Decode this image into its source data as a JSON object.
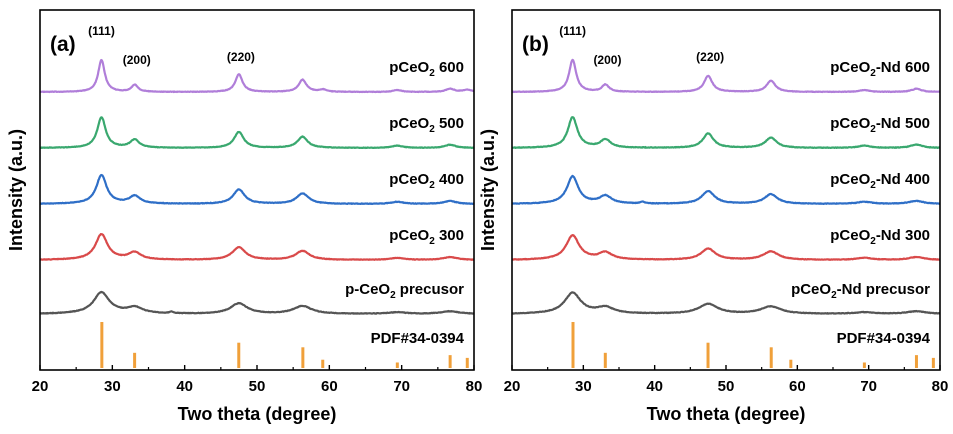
{
  "chart_data": [
    {
      "type": "line",
      "panel_label": "(a)",
      "xlabel": "Two theta (degree)",
      "ylabel": "Intensity (a.u.)",
      "xlim": [
        20,
        80
      ],
      "x_ticks": [
        "20",
        "30",
        "40",
        "50",
        "60",
        "70",
        "80"
      ],
      "peak_labels": [
        {
          "x": 28.5,
          "text": "(111)"
        },
        {
          "x": 33.1,
          "text": "(200)"
        },
        {
          "x": 47.5,
          "text": "(220)"
        }
      ],
      "series": [
        {
          "label_main": "pCeO",
          "label_sub": "2",
          "label_rest": " 600",
          "color": "#b07ed9",
          "smooth": 0.0,
          "noise": 0.25,
          "peaks": [
            [
              28.5,
              1.0,
              0.55
            ],
            [
              33.1,
              0.22,
              0.55
            ],
            [
              47.5,
              0.55,
              0.6
            ],
            [
              56.3,
              0.38,
              0.65
            ],
            [
              59.1,
              0.07,
              0.6
            ],
            [
              69.4,
              0.06,
              0.7
            ],
            [
              76.7,
              0.1,
              0.7
            ],
            [
              79.1,
              0.07,
              0.7
            ]
          ]
        },
        {
          "label_main": "pCeO",
          "label_sub": "2",
          "label_rest": " 500",
          "color": "#3aa86f",
          "smooth": 0.15,
          "noise": 0.25,
          "peaks": [
            [
              28.5,
              0.95,
              0.7
            ],
            [
              33.1,
              0.25,
              0.75
            ],
            [
              47.5,
              0.5,
              0.8
            ],
            [
              56.3,
              0.35,
              0.85
            ],
            [
              69.4,
              0.07,
              0.9
            ],
            [
              76.7,
              0.1,
              0.9
            ]
          ]
        },
        {
          "label_main": "pCeO",
          "label_sub": "2",
          "label_rest": " 400",
          "color": "#2f6fc7",
          "smooth": 0.25,
          "noise": 0.3,
          "peaks": [
            [
              28.5,
              0.95,
              0.85
            ],
            [
              33.1,
              0.25,
              0.9
            ],
            [
              47.5,
              0.48,
              0.95
            ],
            [
              56.3,
              0.35,
              1.0
            ],
            [
              69.4,
              0.07,
              1.0
            ],
            [
              76.7,
              0.1,
              1.0
            ]
          ]
        },
        {
          "label_main": "pCeO",
          "label_sub": "2",
          "label_rest": " 300",
          "color": "#d94a4a",
          "smooth": 0.35,
          "noise": 0.3,
          "peaks": [
            [
              28.5,
              0.9,
              1.0
            ],
            [
              33.1,
              0.25,
              1.0
            ],
            [
              47.5,
              0.45,
              1.1
            ],
            [
              56.3,
              0.32,
              1.15
            ],
            [
              69.4,
              0.07,
              1.2
            ],
            [
              76.7,
              0.1,
              1.2
            ]
          ]
        },
        {
          "label_main": "p-CeO",
          "label_sub": "2",
          "label_rest": " precusor",
          "color": "#555555",
          "smooth": 0.5,
          "noise": 0.35,
          "peaks": [
            [
              28.5,
              0.8,
              1.3
            ],
            [
              33.1,
              0.22,
              1.3
            ],
            [
              38.2,
              0.06,
              0.3
            ],
            [
              47.5,
              0.4,
              1.4
            ],
            [
              56.3,
              0.3,
              1.5
            ],
            [
              69.4,
              0.06,
              1.5
            ],
            [
              76.7,
              0.1,
              1.5
            ]
          ]
        }
      ],
      "reference": {
        "label": "PDF#34-0394",
        "color": "#f0a03a",
        "lines": [
          [
            28.55,
            1.0
          ],
          [
            33.08,
            0.33
          ],
          [
            47.48,
            0.55
          ],
          [
            56.34,
            0.45
          ],
          [
            59.09,
            0.18
          ],
          [
            69.4,
            0.12
          ],
          [
            76.7,
            0.28
          ],
          [
            79.07,
            0.22
          ]
        ]
      }
    },
    {
      "type": "line",
      "panel_label": "(b)",
      "xlabel": "Two theta (degree)",
      "ylabel": "Intensity (a.u.)",
      "xlim": [
        20,
        80
      ],
      "x_ticks": [
        "20",
        "30",
        "40",
        "50",
        "60",
        "70",
        "80"
      ],
      "peak_labels": [
        {
          "x": 28.5,
          "text": "(111)"
        },
        {
          "x": 33.1,
          "text": "(200)"
        },
        {
          "x": 47.5,
          "text": "(220)"
        }
      ],
      "series": [
        {
          "label_main": "pCeO",
          "label_sub": "2",
          "label_rest": "-Nd 600",
          "color": "#b07ed9",
          "smooth": 0.05,
          "noise": 0.25,
          "peaks": [
            [
              28.5,
              1.0,
              0.6
            ],
            [
              33.1,
              0.22,
              0.6
            ],
            [
              47.5,
              0.5,
              0.7
            ],
            [
              56.3,
              0.35,
              0.75
            ],
            [
              69.4,
              0.06,
              0.8
            ],
            [
              76.7,
              0.1,
              0.8
            ]
          ]
        },
        {
          "label_main": "pCeO",
          "label_sub": "2",
          "label_rest": "-Nd 500",
          "color": "#3aa86f",
          "smooth": 0.2,
          "noise": 0.3,
          "peaks": [
            [
              28.5,
              0.95,
              0.8
            ],
            [
              33.1,
              0.25,
              0.85
            ],
            [
              47.5,
              0.45,
              0.9
            ],
            [
              56.3,
              0.32,
              0.95
            ],
            [
              69.4,
              0.07,
              1.0
            ],
            [
              76.7,
              0.1,
              1.0
            ]
          ]
        },
        {
          "label_main": "pCeO",
          "label_sub": "2",
          "label_rest": "-Nd 400",
          "color": "#2f6fc7",
          "smooth": 0.3,
          "noise": 0.3,
          "peaks": [
            [
              28.5,
              0.9,
              0.95
            ],
            [
              33.1,
              0.25,
              1.0
            ],
            [
              38.3,
              0.06,
              0.3
            ],
            [
              47.5,
              0.42,
              1.1
            ],
            [
              56.3,
              0.32,
              1.1
            ],
            [
              69.4,
              0.07,
              1.2
            ],
            [
              76.7,
              0.1,
              1.2
            ]
          ]
        },
        {
          "label_main": "pCeO",
          "label_sub": "2",
          "label_rest": "-Nd 300",
          "color": "#d94a4a",
          "smooth": 0.4,
          "noise": 0.3,
          "peaks": [
            [
              28.5,
              0.85,
              1.1
            ],
            [
              33.1,
              0.24,
              1.1
            ],
            [
              47.5,
              0.4,
              1.2
            ],
            [
              56.3,
              0.3,
              1.3
            ],
            [
              69.4,
              0.07,
              1.3
            ],
            [
              76.7,
              0.1,
              1.3
            ]
          ]
        },
        {
          "label_main": "pCeO",
          "label_sub": "2",
          "label_rest": "-Nd precusor",
          "color": "#555555",
          "smooth": 0.55,
          "noise": 0.35,
          "peaks": [
            [
              28.5,
              0.78,
              1.35
            ],
            [
              33.1,
              0.22,
              1.35
            ],
            [
              47.5,
              0.38,
              1.6
            ],
            [
              56.3,
              0.28,
              1.7
            ],
            [
              69.4,
              0.06,
              1.6
            ],
            [
              76.7,
              0.1,
              1.6
            ]
          ]
        }
      ],
      "reference": {
        "label": "PDF#34-0394",
        "color": "#f0a03a",
        "lines": [
          [
            28.55,
            1.0
          ],
          [
            33.08,
            0.33
          ],
          [
            47.48,
            0.55
          ],
          [
            56.34,
            0.45
          ],
          [
            59.09,
            0.18
          ],
          [
            69.4,
            0.12
          ],
          [
            76.7,
            0.28
          ],
          [
            79.07,
            0.22
          ]
        ]
      }
    }
  ]
}
